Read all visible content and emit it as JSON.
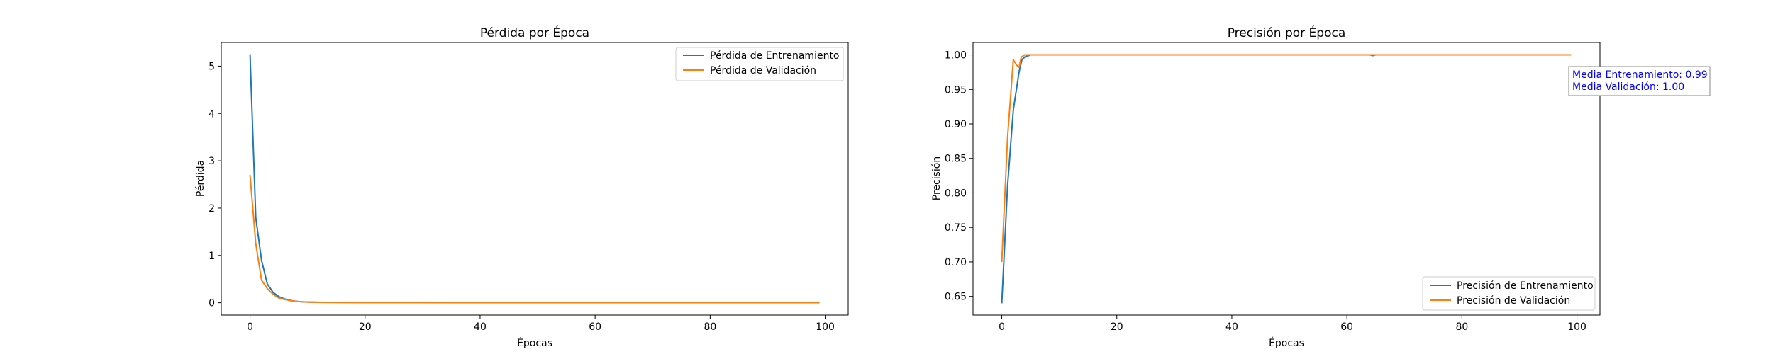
{
  "colors": {
    "train": "#1f77b4",
    "val": "#ff7f0e",
    "annotation": "#0000ff"
  },
  "chart_data": [
    {
      "type": "line",
      "title": "Pérdida por Época",
      "xlabel": "Épocas",
      "ylabel": "Pérdida",
      "xlim": [
        -5,
        104
      ],
      "ylim": [
        -0.26,
        5.5
      ],
      "xticks": [
        0,
        20,
        40,
        60,
        80,
        100
      ],
      "yticks": [
        0,
        1,
        2,
        3,
        4,
        5
      ],
      "tick_decimals": 0,
      "legend_position": "upper right",
      "series": [
        {
          "name": "Pérdida de Entrenamiento",
          "color": "#1f77b4",
          "x": [
            0,
            1,
            2,
            3,
            4,
            5,
            6,
            7,
            8,
            9,
            10,
            12,
            15,
            20,
            30,
            40,
            50,
            60,
            70,
            80,
            90,
            99
          ],
          "values": [
            5.25,
            1.8,
            0.9,
            0.4,
            0.22,
            0.13,
            0.08,
            0.05,
            0.03,
            0.02,
            0.015,
            0.01,
            0.008,
            0.006,
            0.005,
            0.004,
            0.004,
            0.003,
            0.003,
            0.003,
            0.003,
            0.003
          ]
        },
        {
          "name": "Pérdida de Validación",
          "color": "#ff7f0e",
          "x": [
            0,
            1,
            2,
            3,
            4,
            5,
            6,
            7,
            8,
            9,
            10,
            12,
            15,
            20,
            30,
            40,
            50,
            60,
            70,
            80,
            90,
            99
          ],
          "values": [
            2.7,
            1.25,
            0.48,
            0.3,
            0.18,
            0.1,
            0.07,
            0.045,
            0.03,
            0.02,
            0.015,
            0.01,
            0.008,
            0.006,
            0.005,
            0.004,
            0.004,
            0.004,
            0.003,
            0.003,
            0.003,
            0.003
          ]
        }
      ]
    },
    {
      "type": "line",
      "title": "Precisión por Época",
      "xlabel": "Épocas",
      "ylabel": "Precisión",
      "xlim": [
        -5,
        104
      ],
      "ylim": [
        0.623,
        1.018
      ],
      "xticks": [
        0,
        20,
        40,
        60,
        80,
        100
      ],
      "yticks": [
        0.65,
        0.7,
        0.75,
        0.8,
        0.85,
        0.9,
        0.95,
        1.0
      ],
      "tick_decimals": 2,
      "legend_position": "lower right",
      "series": [
        {
          "name": "Precisión de Entrenamiento",
          "color": "#1f77b4",
          "x": [
            0,
            1,
            2,
            3,
            3.5,
            4,
            5,
            6,
            10,
            20,
            40,
            60,
            64,
            64.5,
            65,
            80,
            99
          ],
          "values": [
            0.64,
            0.81,
            0.92,
            0.975,
            0.993,
            0.997,
            1.0,
            1.0,
            1.0,
            1.0,
            1.0,
            1.0,
            1.0,
            0.999,
            1.0,
            1.0,
            1.0
          ]
        },
        {
          "name": "Precisión de Validación",
          "color": "#ff7f0e",
          "x": [
            0,
            1,
            2,
            2.6,
            3,
            3.4,
            4,
            5,
            6,
            10,
            20,
            40,
            60,
            80,
            99
          ],
          "values": [
            0.7,
            0.88,
            0.993,
            0.985,
            0.982,
            0.997,
            1.0,
            1.0,
            1.0,
            1.0,
            1.0,
            1.0,
            1.0,
            1.0,
            1.0
          ]
        }
      ],
      "annotation_lines": [
        "Media Entrenamiento: 0.99",
        "Media Validación: 1.00"
      ]
    }
  ]
}
